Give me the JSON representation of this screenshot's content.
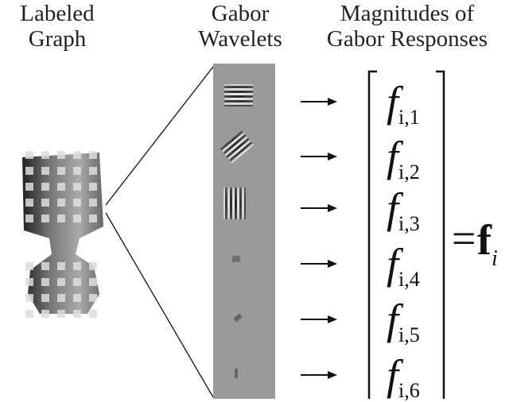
{
  "headers": [
    {
      "lines": [
        "Labeled",
        "Graph"
      ]
    },
    {
      "lines": [
        "Gabor",
        "Wavelets"
      ]
    },
    {
      "lines": [
        "Magnitudes of",
        "Gabor Responses"
      ]
    }
  ],
  "vector": [
    {
      "symbol": "f",
      "subscript": "i,1"
    },
    {
      "symbol": "f",
      "subscript": "i,2"
    },
    {
      "symbol": "f",
      "subscript": "i,3"
    },
    {
      "symbol": "f",
      "subscript": "i,4"
    },
    {
      "symbol": "f",
      "subscript": "i,5"
    },
    {
      "symbol": "f",
      "subscript": "i,6"
    }
  ],
  "result": {
    "equals": "=",
    "symbol": "f",
    "subscript": "i"
  }
}
